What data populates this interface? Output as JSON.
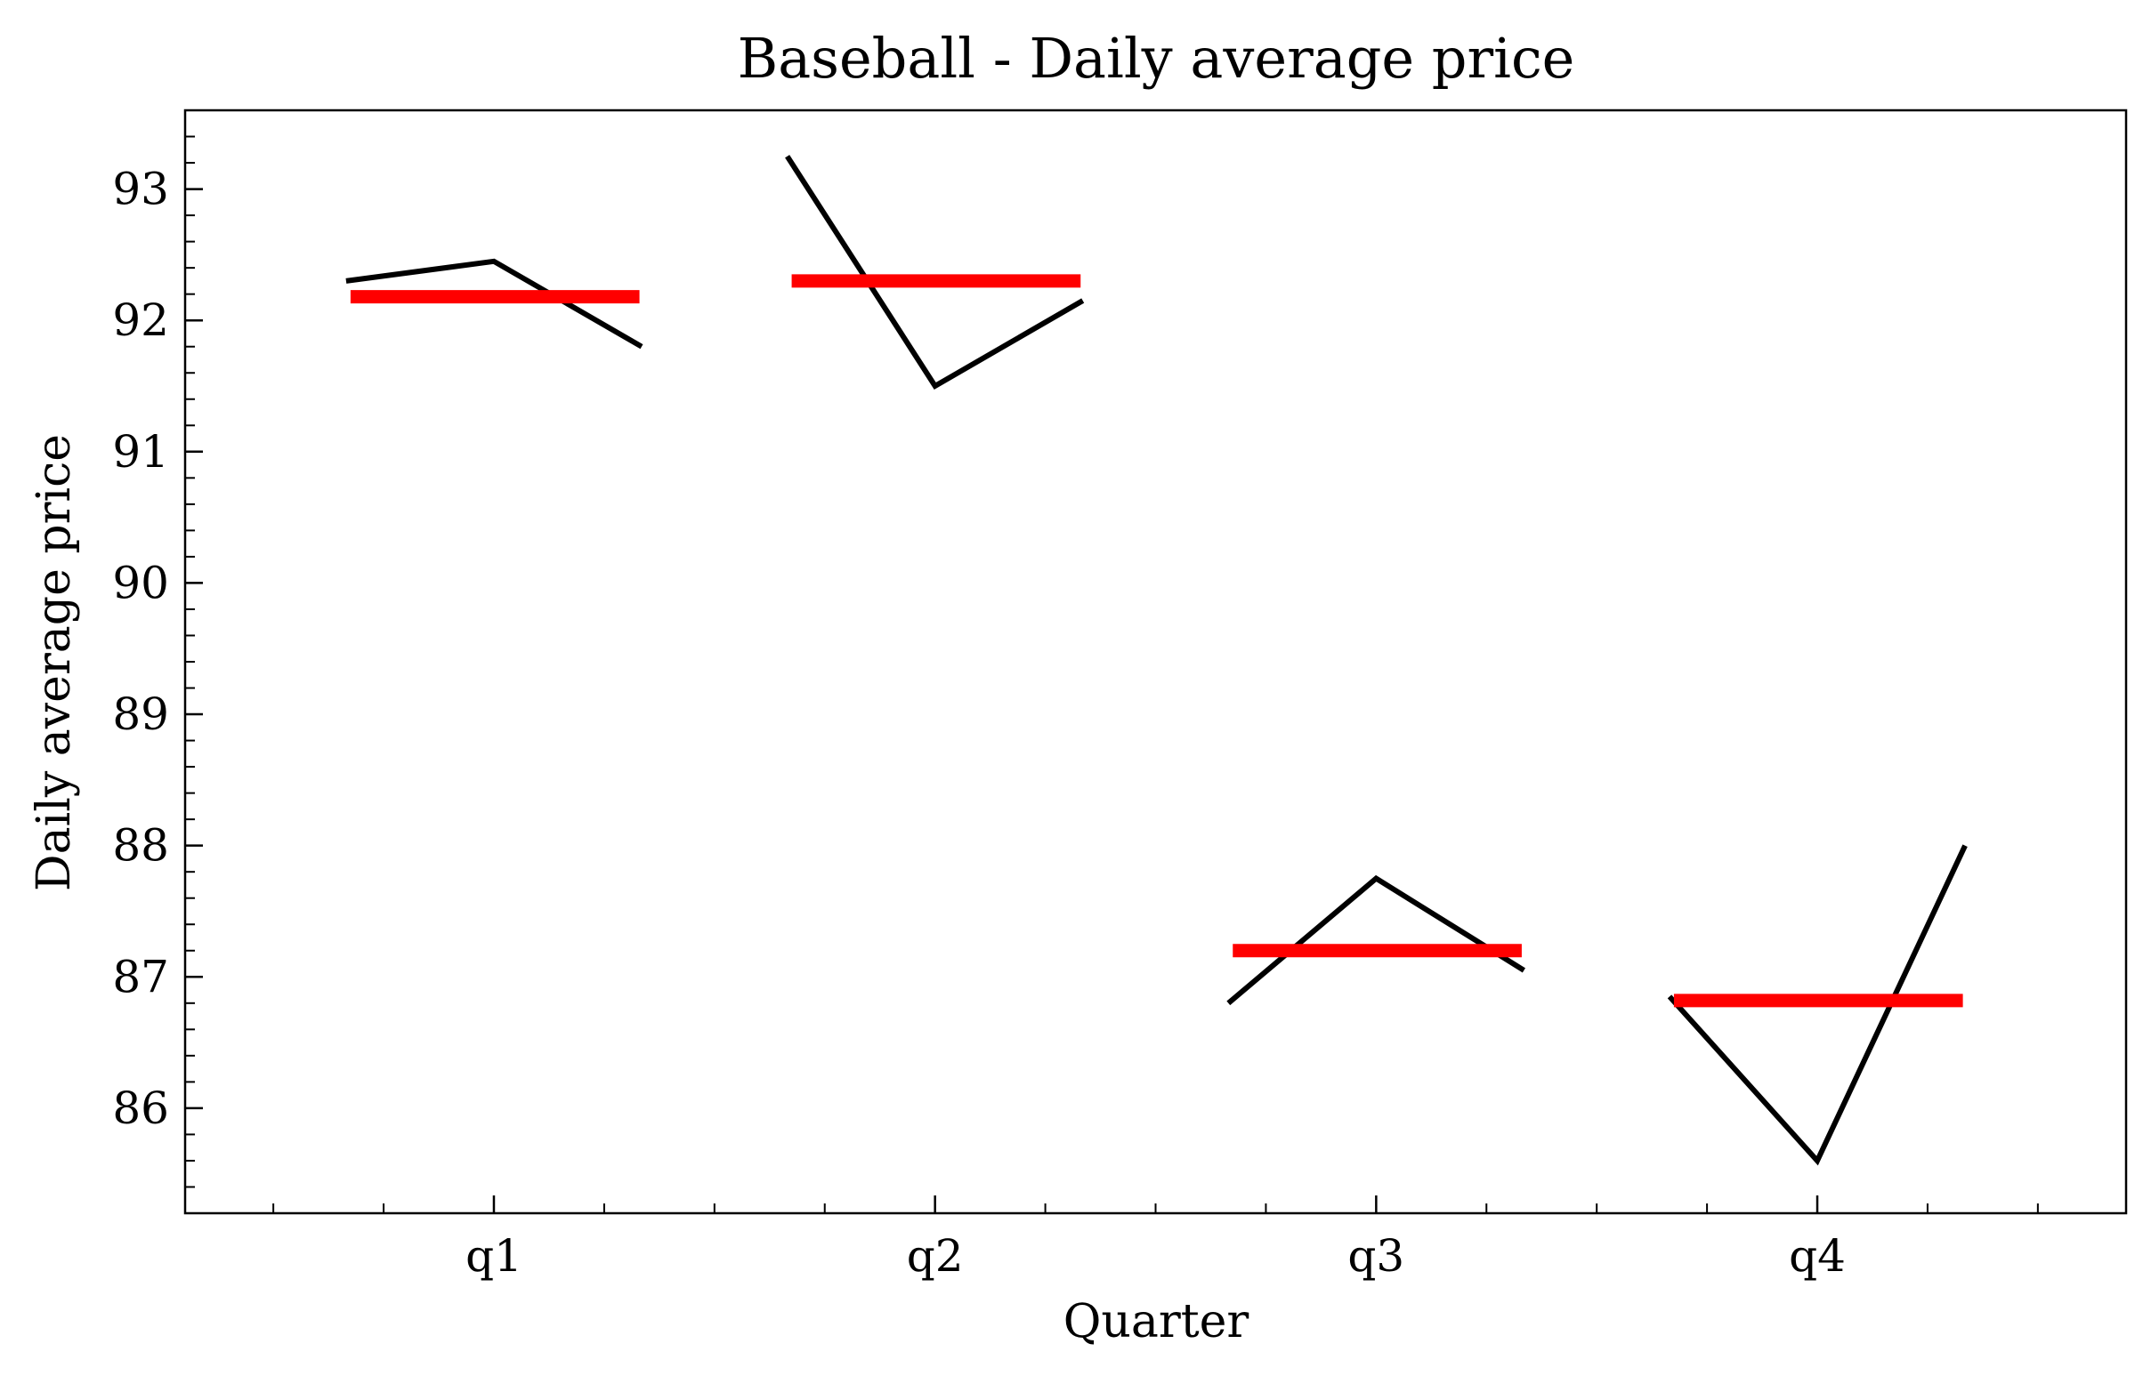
{
  "chart_data": {
    "type": "line",
    "title": "Baseball - Daily average price",
    "xlabel": "Quarter",
    "ylabel": "Daily average price",
    "categories": [
      "q1",
      "q2",
      "q3",
      "q4"
    ],
    "y_ticks": [
      86,
      87,
      88,
      89,
      90,
      91,
      92,
      93
    ],
    "y_tick_labels": [
      "86",
      "87",
      "88",
      "89",
      "90",
      "91",
      "92",
      "93"
    ],
    "ylim": [
      85.2,
      93.6
    ],
    "grid": false,
    "groups": [
      {
        "category": "q1",
        "values": [
          92.3,
          92.45,
          91.8
        ],
        "mean": 92.18
      },
      {
        "category": "q2",
        "values": [
          93.25,
          91.5,
          92.15
        ],
        "mean": 92.3
      },
      {
        "category": "q3",
        "values": [
          86.8,
          87.75,
          87.05
        ],
        "mean": 87.2
      },
      {
        "category": "q4",
        "values": [
          86.85,
          85.6,
          88.0
        ],
        "mean": 86.82
      }
    ],
    "colors": {
      "line": "#000000",
      "mean": "#ff0000"
    }
  }
}
